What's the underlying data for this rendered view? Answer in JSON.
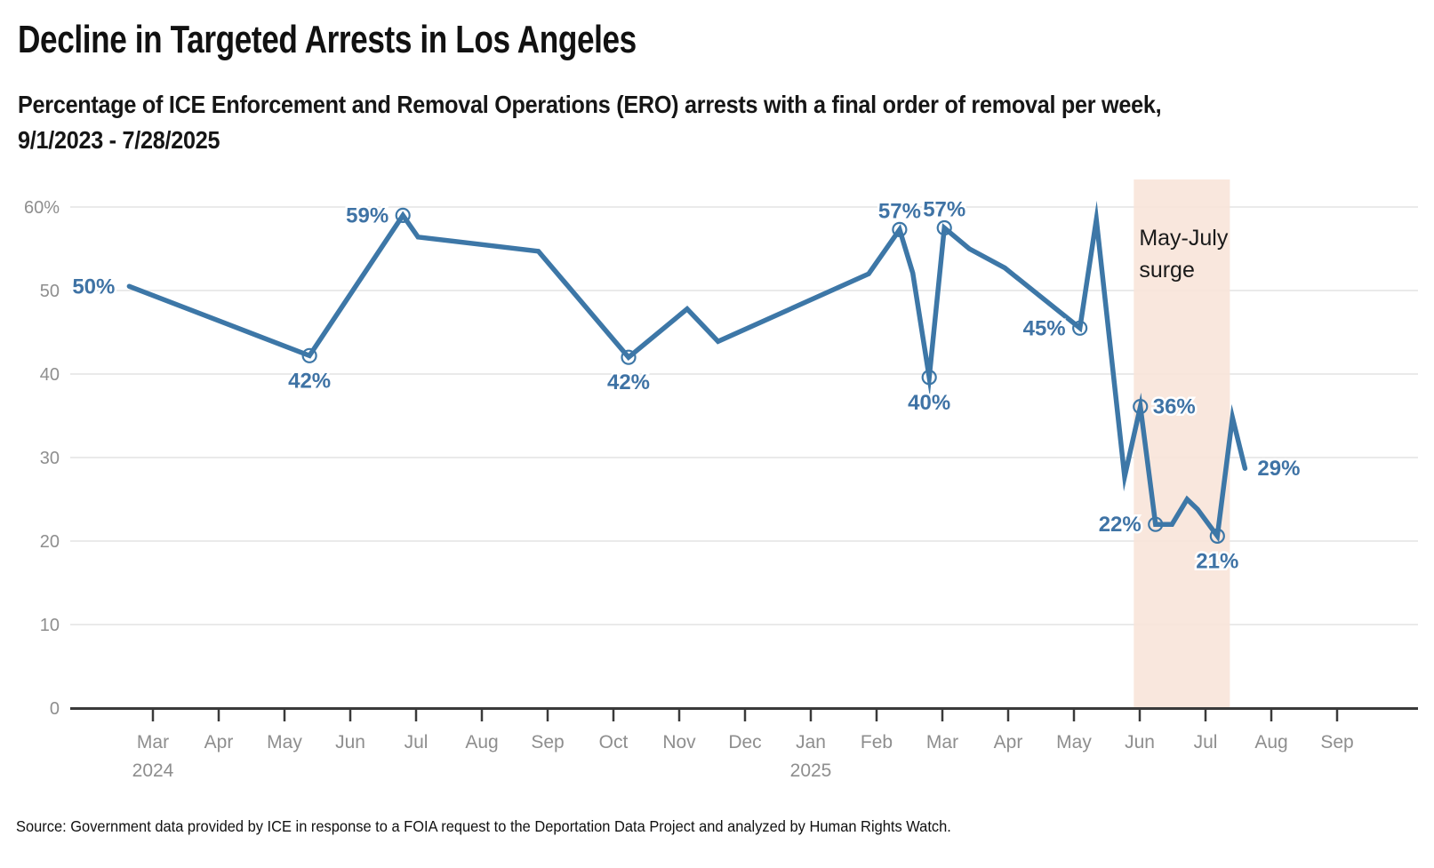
{
  "header": {
    "title": "Decline in Targeted Arrests in Los Angeles",
    "subtitle_line1": "Percentage of ICE Enforcement and Removal Operations (ERO) arrests with a final order of removal per week,",
    "subtitle_line2": "9/1/2023 - 7/28/2025"
  },
  "source": "Source: Government data provided by ICE in response to a FOIA request to the Deportation Data Project and analyzed by Human Rights Watch.",
  "chart_data": {
    "type": "line",
    "title": "Decline in Targeted Arrests in Los Angeles",
    "xlabel": "",
    "ylabel": "",
    "ylim": [
      0,
      63
    ],
    "grid": true,
    "line_color": "#3d77a7",
    "label_color": "#3f73a5",
    "band_color": "#f8e4d8",
    "grid_color": "#e4e4e4",
    "axis_color": "#3a3a3a",
    "tick_text_color": "#8e8e8e",
    "annotation_color": "#1a1a1a",
    "x_unit": "months since March 2024 tick",
    "y_ticks": [
      {
        "value": 0,
        "label": "0"
      },
      {
        "value": 10,
        "label": "10"
      },
      {
        "value": 20,
        "label": "20"
      },
      {
        "value": 30,
        "label": "30"
      },
      {
        "value": 40,
        "label": "40"
      },
      {
        "value": 50,
        "label": "50"
      },
      {
        "value": 60,
        "label": "60%"
      }
    ],
    "x_ticks": [
      {
        "label": "Mar",
        "year": "2024"
      },
      {
        "label": "Apr"
      },
      {
        "label": "May"
      },
      {
        "label": "Jun"
      },
      {
        "label": "Jul"
      },
      {
        "label": "Aug"
      },
      {
        "label": "Sep"
      },
      {
        "label": "Oct"
      },
      {
        "label": "Nov"
      },
      {
        "label": "Dec"
      },
      {
        "label": "Jan",
        "year": "2025"
      },
      {
        "label": "Feb"
      },
      {
        "label": "Mar"
      },
      {
        "label": "Apr"
      },
      {
        "label": "May"
      },
      {
        "label": "Jun"
      },
      {
        "label": "Jul"
      },
      {
        "label": "Aug"
      },
      {
        "label": "Sep"
      }
    ],
    "band": {
      "label_line1": "May-July",
      "label_line2": "surge",
      "x_start": 14.91,
      "x_end": 16.37
    },
    "points": [
      {
        "m": -0.36,
        "v": 50.5,
        "label": "50%",
        "label_pos": "left"
      },
      {
        "m": 2.38,
        "v": 42.2,
        "label": "42%",
        "label_pos": "below",
        "marker": true
      },
      {
        "m": 3.8,
        "v": 59.0,
        "label": "59%",
        "label_pos": "left",
        "marker": true
      },
      {
        "m": 4.03,
        "v": 56.4
      },
      {
        "m": 5.86,
        "v": 54.7
      },
      {
        "m": 7.23,
        "v": 42.0,
        "label": "42%",
        "label_pos": "below",
        "marker": true
      },
      {
        "m": 8.12,
        "v": 47.8
      },
      {
        "m": 8.59,
        "v": 43.9
      },
      {
        "m": 10.88,
        "v": 52.0
      },
      {
        "m": 11.35,
        "v": 57.3,
        "label": "57%",
        "label_pos": "above",
        "marker": true
      },
      {
        "m": 11.55,
        "v": 52.1
      },
      {
        "m": 11.8,
        "v": 39.6,
        "label": "40%",
        "label_pos": "below",
        "marker": true
      },
      {
        "m": 12.03,
        "v": 57.5,
        "label": "57%",
        "label_pos": "above",
        "marker": true
      },
      {
        "m": 12.41,
        "v": 55.0
      },
      {
        "m": 12.95,
        "v": 52.7
      },
      {
        "m": 14.09,
        "v": 45.5,
        "label": "45%",
        "label_pos": "left",
        "marker": true
      },
      {
        "m": 14.34,
        "v": 58.5
      },
      {
        "m": 14.77,
        "v": 27.7
      },
      {
        "m": 15.01,
        "v": 36.1,
        "label": "36%",
        "label_pos": "right",
        "marker": true
      },
      {
        "m": 15.24,
        "v": 22.0,
        "label": "22%",
        "label_pos": "left",
        "marker": true
      },
      {
        "m": 15.49,
        "v": 22.0
      },
      {
        "m": 15.72,
        "v": 25.0
      },
      {
        "m": 15.88,
        "v": 23.8
      },
      {
        "m": 16.18,
        "v": 20.6,
        "label": "21%",
        "label_pos": "below",
        "marker": true
      },
      {
        "m": 16.41,
        "v": 34.8
      },
      {
        "m": 16.6,
        "v": 28.7,
        "label": "29%",
        "label_pos": "right"
      }
    ]
  }
}
